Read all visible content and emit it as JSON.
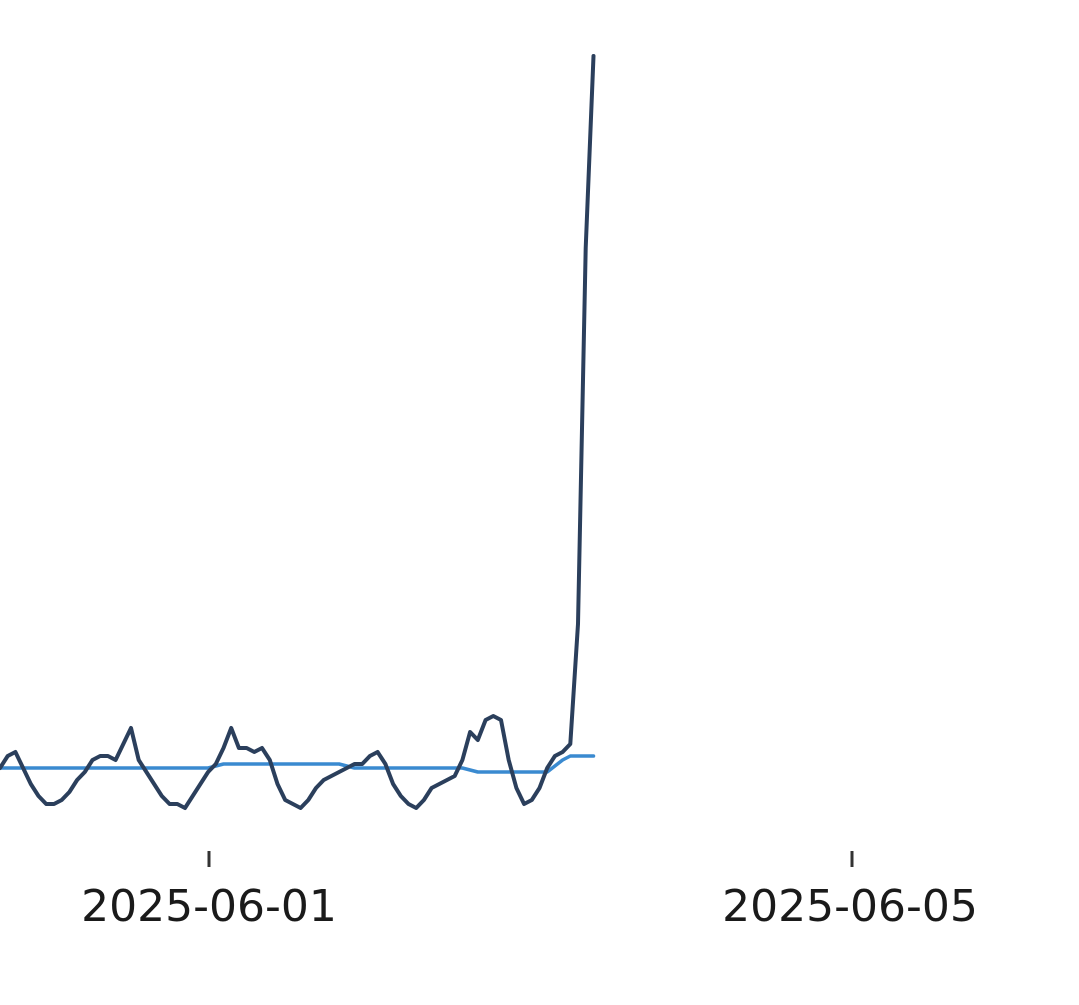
{
  "chart_data": {
    "type": "line",
    "title": "",
    "xlabel": "",
    "ylabel": "",
    "x_ticks": [
      "2025-06-01",
      "2025-06-05"
    ],
    "grid": false,
    "legend": "none",
    "xlim": [
      "2025-05-31T00:00",
      "2025-06-05T20:00"
    ],
    "ylim": [
      0,
      100
    ],
    "colors": {
      "primary": "#2b3f5c",
      "baseline": "#3a8ad0"
    },
    "series": [
      {
        "points": [
          [
            "2025-05-31T00:00",
            10.0
          ],
          [
            "2025-05-31T01:00",
            11.5
          ],
          [
            "2025-05-31T02:00",
            12.0
          ],
          [
            "2025-05-31T03:00",
            10.0
          ],
          [
            "2025-05-31T04:00",
            8.0
          ],
          [
            "2025-05-31T05:00",
            6.5
          ],
          [
            "2025-05-31T06:00",
            5.5
          ],
          [
            "2025-05-31T07:00",
            5.5
          ],
          [
            "2025-05-31T08:00",
            6.0
          ],
          [
            "2025-05-31T09:00",
            7.0
          ],
          [
            "2025-05-31T10:00",
            8.5
          ],
          [
            "2025-05-31T11:00",
            9.5
          ],
          [
            "2025-05-31T12:00",
            11.0
          ],
          [
            "2025-05-31T13:00",
            11.5
          ],
          [
            "2025-05-31T14:00",
            11.5
          ],
          [
            "2025-05-31T15:00",
            11.0
          ],
          [
            "2025-05-31T16:00",
            13.0
          ],
          [
            "2025-05-31T17:00",
            15.0
          ],
          [
            "2025-05-31T18:00",
            11.0
          ],
          [
            "2025-05-31T19:00",
            9.5
          ],
          [
            "2025-05-31T20:00",
            8.0
          ],
          [
            "2025-05-31T21:00",
            6.5
          ],
          [
            "2025-05-31T22:00",
            5.5
          ],
          [
            "2025-05-31T23:00",
            5.5
          ],
          [
            "2025-06-01T00:00",
            5.0
          ],
          [
            "2025-06-01T01:00",
            6.5
          ],
          [
            "2025-06-01T02:00",
            8.0
          ],
          [
            "2025-06-01T03:00",
            9.5
          ],
          [
            "2025-06-01T04:00",
            10.5
          ],
          [
            "2025-06-01T05:00",
            12.5
          ],
          [
            "2025-06-01T06:00",
            15.0
          ],
          [
            "2025-06-01T07:00",
            12.5
          ],
          [
            "2025-06-01T08:00",
            12.5
          ],
          [
            "2025-06-01T09:00",
            12.0
          ],
          [
            "2025-06-01T10:00",
            12.5
          ],
          [
            "2025-06-01T11:00",
            11.0
          ],
          [
            "2025-06-01T12:00",
            8.0
          ],
          [
            "2025-06-01T13:00",
            6.0
          ],
          [
            "2025-06-01T14:00",
            5.5
          ],
          [
            "2025-06-01T15:00",
            5.0
          ],
          [
            "2025-06-01T16:00",
            6.0
          ],
          [
            "2025-06-01T17:00",
            7.5
          ],
          [
            "2025-06-01T18:00",
            8.5
          ],
          [
            "2025-06-01T19:00",
            9.0
          ],
          [
            "2025-06-01T20:00",
            9.5
          ],
          [
            "2025-06-01T21:00",
            10.0
          ],
          [
            "2025-06-01T22:00",
            10.5
          ],
          [
            "2025-06-01T23:00",
            10.5
          ],
          [
            "2025-06-02T00:00",
            11.5
          ],
          [
            "2025-06-02T01:00",
            12.0
          ],
          [
            "2025-06-02T02:00",
            10.5
          ],
          [
            "2025-06-02T03:00",
            8.0
          ],
          [
            "2025-06-02T04:00",
            6.5
          ],
          [
            "2025-06-02T05:00",
            5.5
          ],
          [
            "2025-06-02T06:00",
            5.0
          ],
          [
            "2025-06-02T07:00",
            6.0
          ],
          [
            "2025-06-02T08:00",
            7.5
          ],
          [
            "2025-06-02T09:00",
            8.0
          ],
          [
            "2025-06-02T10:00",
            8.5
          ],
          [
            "2025-06-02T11:00",
            9.0
          ],
          [
            "2025-06-02T12:00",
            11.0
          ],
          [
            "2025-06-02T13:00",
            14.5
          ],
          [
            "2025-06-02T14:00",
            13.5
          ],
          [
            "2025-06-02T15:00",
            16.0
          ],
          [
            "2025-06-02T16:00",
            16.5
          ],
          [
            "2025-06-02T17:00",
            16.0
          ],
          [
            "2025-06-02T18:00",
            11.0
          ],
          [
            "2025-06-02T19:00",
            7.5
          ],
          [
            "2025-06-02T20:00",
            5.5
          ],
          [
            "2025-06-02T21:00",
            6.0
          ],
          [
            "2025-06-02T22:00",
            7.5
          ],
          [
            "2025-06-02T23:00",
            10.0
          ],
          [
            "2025-06-03T00:00",
            11.5
          ],
          [
            "2025-06-03T01:00",
            12.0
          ],
          [
            "2025-06-03T02:00",
            13.0
          ],
          [
            "2025-06-03T03:00",
            28.0
          ],
          [
            "2025-06-03T04:00",
            75.0
          ],
          [
            "2025-06-03T05:00",
            99.0
          ]
        ]
      },
      {
        "points": [
          [
            "2025-05-31T00:00",
            10.0
          ],
          [
            "2025-05-31T12:00",
            10.0
          ],
          [
            "2025-06-01T00:00",
            10.0
          ],
          [
            "2025-06-01T03:00",
            10.0
          ],
          [
            "2025-06-01T05:00",
            10.5
          ],
          [
            "2025-06-01T12:00",
            10.5
          ],
          [
            "2025-06-01T20:00",
            10.5
          ],
          [
            "2025-06-01T22:00",
            10.0
          ],
          [
            "2025-06-02T12:00",
            10.0
          ],
          [
            "2025-06-02T14:00",
            9.5
          ],
          [
            "2025-06-02T23:00",
            9.5
          ],
          [
            "2025-06-03T01:00",
            11.0
          ],
          [
            "2025-06-03T02:00",
            11.5
          ],
          [
            "2025-06-03T05:00",
            11.5
          ]
        ]
      }
    ]
  }
}
